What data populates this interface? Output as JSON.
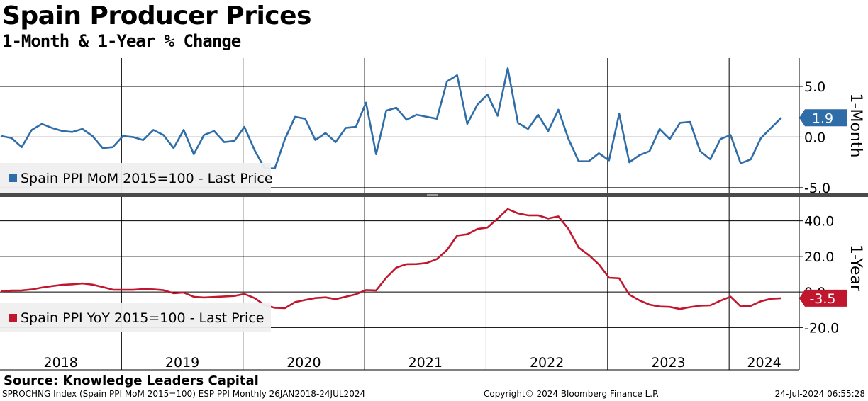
{
  "header": {
    "title": "Spain Producer Prices",
    "subtitle": "1-Month & 1-Year % Change"
  },
  "footer": {
    "source": "Source: Knowledge Leaders Capital",
    "ticker": "SPROCHNG Index (Spain PPI MoM 2015=100) ESP PPI  Monthly 26JAN2018-24JUL2024",
    "copyright": "Copyright© 2024 Bloomberg Finance L.P.",
    "timestamp": "24-Jul-2024 06:55:28"
  },
  "colors": {
    "mom": "#2e6da8",
    "yoy": "#c0172f",
    "grid": "#000000"
  },
  "chart_data": [
    {
      "type": "line",
      "panel": "top",
      "ylabel": "1-Month",
      "yticks": [
        "5.0",
        "0.0",
        "-5.0"
      ],
      "ylim": [
        -5.5,
        7.8
      ],
      "x_start": "2018-01",
      "x_end": "2024-07",
      "xticks": [
        "2018",
        "2019",
        "2020",
        "2021",
        "2022",
        "2023",
        "2024"
      ],
      "legend_label": "Spain PPI MoM 2015=100 - Last Price",
      "last_value_label": "1.9",
      "series": [
        {
          "name": "Spain PPI MoM 2015=100 - Last Price",
          "values": [
            0.1,
            -0.1,
            -1.0,
            0.7,
            1.3,
            0.9,
            0.6,
            0.5,
            0.8,
            0.1,
            -1.1,
            -1.0,
            0.1,
            0.0,
            -0.3,
            0.7,
            0.2,
            -1.1,
            0.7,
            -1.7,
            0.2,
            0.6,
            -0.5,
            -0.4,
            1.0,
            -1.3,
            -3.1,
            -3.1,
            -0.2,
            2.0,
            1.8,
            -0.3,
            0.4,
            -0.5,
            0.9,
            1.0,
            3.4,
            -1.7,
            2.6,
            2.9,
            1.7,
            2.2,
            2.0,
            1.8,
            5.5,
            6.1,
            1.3,
            3.2,
            4.2,
            2.1,
            6.8,
            1.4,
            0.8,
            2.2,
            0.6,
            2.7,
            -0.2,
            -2.4,
            -2.4,
            -1.6,
            -2.3,
            2.3,
            -2.5,
            -1.8,
            -1.4,
            0.8,
            -0.2,
            1.4,
            1.5,
            -1.4,
            -2.2,
            -0.2,
            0.2,
            -2.6,
            -2.2,
            -0.1,
            0.9,
            1.9
          ]
        }
      ]
    },
    {
      "type": "line",
      "panel": "bottom",
      "ylabel": "1-Year",
      "yticks": [
        "40.0",
        "20.0",
        "0.0",
        "-20.0"
      ],
      "ylim": [
        -31,
        53
      ],
      "x_start": "2018-01",
      "x_end": "2024-07",
      "legend_label": "Spain PPI YoY 2015=100 - Last Price",
      "last_value_label": "-3.5",
      "series": [
        {
          "name": "Spain PPI YoY 2015=100 - Last Price",
          "values": [
            0.5,
            0.8,
            0.9,
            1.4,
            2.5,
            3.3,
            4.0,
            4.3,
            4.8,
            4.1,
            2.8,
            1.3,
            1.2,
            1.2,
            1.6,
            1.5,
            1.0,
            -0.7,
            -0.3,
            -2.7,
            -3.1,
            -2.8,
            -2.5,
            -2.2,
            -1.1,
            -3.4,
            -7.4,
            -8.9,
            -9.1,
            -5.7,
            -4.5,
            -3.4,
            -3.0,
            -4.0,
            -2.7,
            -1.3,
            1.1,
            0.9,
            8.0,
            13.7,
            15.6,
            15.7,
            16.3,
            18.5,
            23.6,
            31.7,
            32.4,
            35.4,
            36.2,
            41.3,
            46.6,
            44.2,
            43.1,
            43.1,
            41.3,
            42.5,
            35.4,
            24.9,
            20.8,
            15.5,
            8.0,
            7.7,
            -1.5,
            -4.7,
            -7.1,
            -8.2,
            -8.4,
            -9.6,
            -8.5,
            -7.7,
            -7.5,
            -4.9,
            -2.6,
            -8.1,
            -7.8,
            -5.2,
            -3.8,
            -3.5
          ]
        }
      ]
    }
  ]
}
